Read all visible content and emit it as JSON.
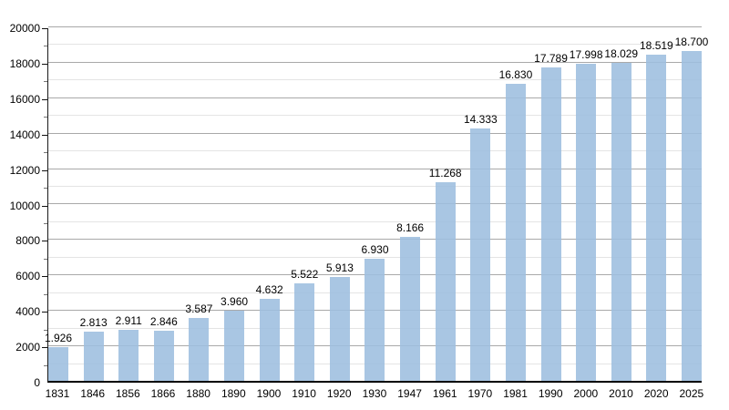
{
  "chart_data": {
    "type": "bar",
    "title": "",
    "xlabel": "",
    "ylabel": "",
    "categories": [
      "1831",
      "1846",
      "1856",
      "1866",
      "1880",
      "1890",
      "1900",
      "1910",
      "1920",
      "1930",
      "1947",
      "1961",
      "1970",
      "1981",
      "1990",
      "2000",
      "2010",
      "2020",
      "2025"
    ],
    "values": [
      1926,
      2813,
      2911,
      2846,
      3587,
      3960,
      4632,
      5522,
      5913,
      6930,
      8166,
      11268,
      14333,
      16830,
      17789,
      17998,
      18029,
      18519,
      18700
    ],
    "bar_labels": [
      "1.926",
      "2.813",
      "2.911",
      "2.846",
      "3.587",
      "3.960",
      "4.632",
      "5.522",
      "5.913",
      "6.930",
      "8.166",
      "11.268",
      "14.333",
      "16.830",
      "17.789",
      "17.998",
      "18.029",
      "18.519",
      "18.700"
    ],
    "ylim": [
      0,
      20000
    ],
    "y_major_step": 2000,
    "y_minor_step": 1000,
    "y_tick_labels": [
      "0",
      "2000",
      "4000",
      "6000",
      "8000",
      "10000",
      "12000",
      "14000",
      "16000",
      "18000",
      "20000"
    ],
    "grid": true,
    "legend": false,
    "colors": {
      "bar_fill": "#a9c6e3",
      "major_grid": "#a9a9a9",
      "minor_grid": "#e4e4e4",
      "axis": "#000000",
      "text": "#000000"
    }
  }
}
